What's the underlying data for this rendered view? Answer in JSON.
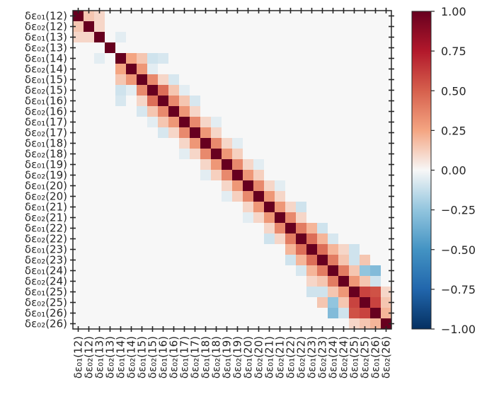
{
  "chart_data": {
    "type": "heatmap",
    "labels": [
      "δε₀₁(12)",
      "δε₀₂(12)",
      "δε₀₁(13)",
      "δε₀₂(13)",
      "δε₀₁(14)",
      "δε₀₂(14)",
      "δε₀₁(15)",
      "δε₀₂(15)",
      "δε₀₁(16)",
      "δε₀₂(16)",
      "δε₀₁(17)",
      "δε₀₂(17)",
      "δε₀₁(18)",
      "δε₀₂(18)",
      "δε₀₁(19)",
      "δε₀₂(19)",
      "δε₀₁(20)",
      "δε₀₂(20)",
      "δε₀₁(21)",
      "δε₀₂(21)",
      "δε₀₁(22)",
      "δε₀₂(22)",
      "δε₀₁(23)",
      "δε₀₂(23)",
      "δε₀₁(24)",
      "δε₀₂(24)",
      "δε₀₁(25)",
      "δε₀₂(25)",
      "δε₀₁(26)",
      "δε₀₂(26)"
    ],
    "cells": [
      [
        0,
        1,
        0.15
      ],
      [
        0,
        2,
        0.1
      ],
      [
        1,
        2,
        0.1
      ],
      [
        2,
        4,
        -0.05
      ],
      [
        4,
        5,
        0.25
      ],
      [
        4,
        6,
        0.15
      ],
      [
        4,
        7,
        -0.1
      ],
      [
        4,
        8,
        -0.08
      ],
      [
        5,
        6,
        0.3
      ],
      [
        5,
        7,
        -0.05
      ],
      [
        6,
        7,
        0.35
      ],
      [
        6,
        8,
        0.1
      ],
      [
        6,
        9,
        -0.08
      ],
      [
        7,
        8,
        0.45
      ],
      [
        7,
        9,
        0.15
      ],
      [
        7,
        10,
        -0.05
      ],
      [
        8,
        9,
        0.35
      ],
      [
        8,
        10,
        0.15
      ],
      [
        8,
        11,
        -0.08
      ],
      [
        9,
        10,
        0.3
      ],
      [
        9,
        11,
        0.1
      ],
      [
        10,
        11,
        0.35
      ],
      [
        10,
        12,
        0.1
      ],
      [
        10,
        13,
        -0.05
      ],
      [
        11,
        12,
        0.3
      ],
      [
        11,
        13,
        0.1
      ],
      [
        12,
        13,
        0.35
      ],
      [
        12,
        14,
        0.1
      ],
      [
        12,
        15,
        -0.05
      ],
      [
        13,
        14,
        0.3
      ],
      [
        13,
        15,
        0.12
      ],
      [
        14,
        15,
        0.35
      ],
      [
        14,
        16,
        0.1
      ],
      [
        14,
        17,
        -0.05
      ],
      [
        15,
        16,
        0.3
      ],
      [
        15,
        17,
        0.12
      ],
      [
        16,
        17,
        0.35
      ],
      [
        16,
        18,
        0.1
      ],
      [
        16,
        19,
        -0.05
      ],
      [
        17,
        18,
        0.3
      ],
      [
        17,
        19,
        0.1
      ],
      [
        18,
        19,
        0.3
      ],
      [
        18,
        20,
        0.1
      ],
      [
        18,
        21,
        -0.1
      ],
      [
        19,
        20,
        0.35
      ],
      [
        19,
        21,
        0.1
      ],
      [
        20,
        21,
        0.4
      ],
      [
        20,
        22,
        0.2
      ],
      [
        20,
        23,
        -0.1
      ],
      [
        21,
        22,
        0.45
      ],
      [
        21,
        23,
        0.2
      ],
      [
        21,
        24,
        -0.08
      ],
      [
        22,
        23,
        0.45
      ],
      [
        22,
        24,
        0.2
      ],
      [
        22,
        25,
        0.1
      ],
      [
        22,
        26,
        -0.1
      ],
      [
        23,
        24,
        0.4
      ],
      [
        23,
        25,
        0.15
      ],
      [
        23,
        26,
        -0.1
      ],
      [
        23,
        27,
        0.15
      ],
      [
        24,
        25,
        0.4
      ],
      [
        24,
        26,
        0.15
      ],
      [
        24,
        27,
        -0.25
      ],
      [
        24,
        28,
        -0.3
      ],
      [
        25,
        26,
        0.3
      ],
      [
        25,
        27,
        0.15
      ],
      [
        25,
        28,
        -0.1
      ],
      [
        26,
        27,
        0.6
      ],
      [
        26,
        28,
        0.55
      ],
      [
        26,
        29,
        0.1
      ],
      [
        27,
        28,
        0.6
      ],
      [
        27,
        29,
        0.15
      ],
      [
        28,
        29,
        0.2
      ]
    ],
    "vmin": -1.0,
    "vmax": 1.0,
    "colorbar_ticks": [
      "1.00",
      "0.75",
      "0.50",
      "0.25",
      "0.00",
      "−0.25",
      "−0.50",
      "−0.75",
      "−1.00"
    ],
    "colormap": "RdBu_r",
    "colors": {
      "negative": "#053061",
      "zero": "#f7f7f7",
      "positive": "#67001f"
    }
  }
}
